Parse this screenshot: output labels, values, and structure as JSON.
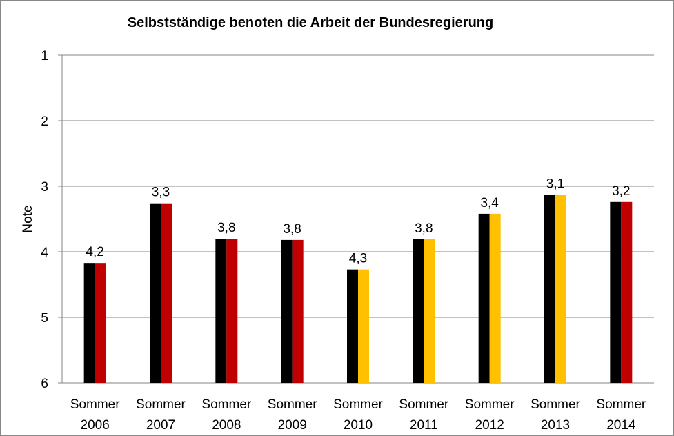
{
  "chart_data": {
    "type": "bar",
    "title": "Selbstständige benoten die Arbeit der Bundesregierung",
    "xlabel": "",
    "ylabel": "Note",
    "ylim": [
      1,
      6
    ],
    "y_inverted": true,
    "yticks": [
      "1",
      "2",
      "3",
      "4",
      "5",
      "6"
    ],
    "grid": true,
    "categories": [
      [
        "Sommer",
        "2006"
      ],
      [
        "Sommer",
        "2007"
      ],
      [
        "Sommer",
        "2008"
      ],
      [
        "Sommer",
        "2009"
      ],
      [
        "Sommer",
        "2010"
      ],
      [
        "Sommer",
        "2011"
      ],
      [
        "Sommer",
        "2012"
      ],
      [
        "Sommer",
        "2013"
      ],
      [
        "Sommer",
        "2014"
      ]
    ],
    "values": [
      4.17,
      3.26,
      3.8,
      3.82,
      4.27,
      3.81,
      3.42,
      3.13,
      3.24
    ],
    "data_labels": [
      "4,2",
      "3,3",
      "3,8",
      "3,8",
      "4,3",
      "3,8",
      "3,4",
      "3,1",
      "3,2"
    ],
    "bar_colors": [
      [
        "#000000",
        "#c00000"
      ],
      [
        "#000000",
        "#c00000"
      ],
      [
        "#000000",
        "#c00000"
      ],
      [
        "#000000",
        "#c00000"
      ],
      [
        "#000000",
        "#ffc000"
      ],
      [
        "#000000",
        "#ffc000"
      ],
      [
        "#000000",
        "#ffc000"
      ],
      [
        "#000000",
        "#ffc000"
      ],
      [
        "#000000",
        "#c00000"
      ]
    ],
    "gridline_color": "#868686"
  }
}
